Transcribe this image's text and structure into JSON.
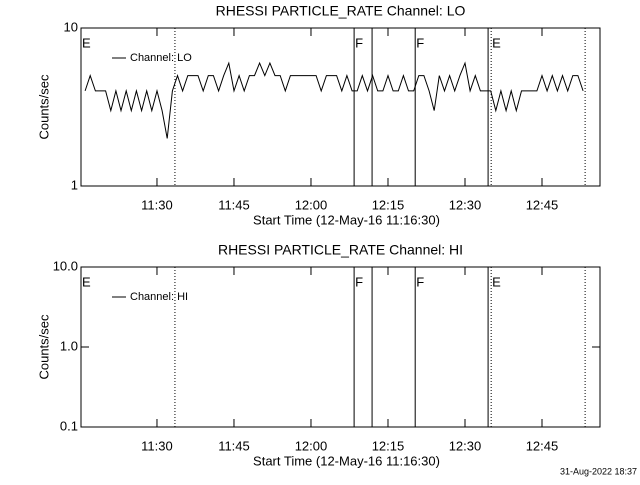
{
  "chart_data": [
    {
      "type": "line",
      "title": "RHESSI PARTICLE_RATE Channel: LO",
      "xlabel": "Start Time (12-May-16 11:16:30)",
      "ylabel": "Counts/sec",
      "log_y": true,
      "xlim": [
        675.2,
        776.3
      ],
      "ylim": [
        1,
        10
      ],
      "xticks": [
        {
          "value": 690,
          "label": "11:30"
        },
        {
          "value": 705,
          "label": "11:45"
        },
        {
          "value": 720,
          "label": "12:00"
        },
        {
          "value": 735,
          "label": "12:15"
        },
        {
          "value": 750,
          "label": "12:30"
        },
        {
          "value": 765,
          "label": "12:45"
        }
      ],
      "yticks": [
        1,
        10
      ],
      "x": [
        676,
        677,
        678,
        679,
        680,
        681,
        682,
        683,
        684,
        685,
        686,
        687,
        688,
        689,
        690,
        691,
        692,
        693,
        694,
        695,
        696,
        697,
        698,
        699,
        700,
        701,
        702,
        703,
        704,
        705,
        706,
        707,
        708,
        709,
        710,
        711,
        712,
        713,
        714,
        715,
        716,
        717,
        718,
        719,
        720,
        721,
        722,
        723,
        724,
        725,
        726,
        727,
        728,
        729,
        730,
        731,
        732,
        733,
        734,
        735,
        736,
        737,
        738,
        739,
        740,
        741,
        742,
        743,
        744,
        745,
        746,
        747,
        748,
        749,
        750,
        751,
        752,
        753,
        754,
        755,
        756,
        757,
        758,
        759,
        760,
        761,
        762,
        763,
        764,
        765,
        766,
        767,
        768,
        769,
        770,
        771,
        772,
        773
      ],
      "series": [
        {
          "name": "Channel: LO",
          "color": "#000000",
          "values": [
            4,
            5,
            4,
            4,
            4,
            3,
            4,
            3,
            4,
            3,
            4,
            3,
            4,
            3,
            4,
            3,
            2,
            4,
            5,
            4,
            5,
            5,
            5,
            4,
            5,
            5,
            4,
            5,
            6,
            4,
            5,
            4,
            5,
            5,
            6,
            5,
            6,
            5,
            5,
            4,
            5,
            5,
            5,
            5,
            5,
            5,
            4,
            5,
            5,
            5,
            4,
            5,
            4,
            4,
            5,
            4,
            5,
            4,
            4,
            5,
            4,
            4,
            5,
            4,
            4,
            5,
            5,
            4,
            3,
            5,
            4,
            5,
            4,
            5,
            6,
            4,
            5,
            4,
            4,
            4,
            3,
            4,
            3,
            4,
            3,
            4,
            4,
            4,
            4,
            5,
            4,
            5,
            4,
            5,
            4,
            5,
            5,
            4
          ]
        }
      ],
      "vlines": [
        {
          "x": 693.5,
          "style": "dotted"
        },
        {
          "x": 728.4,
          "style": "solid"
        },
        {
          "x": 731.9,
          "style": "solid"
        },
        {
          "x": 740.3,
          "style": "solid"
        },
        {
          "x": 754.5,
          "style": "solid"
        },
        {
          "x": 755.1,
          "style": "dotted"
        },
        {
          "x": 773.4,
          "style": "dotted"
        }
      ],
      "flags": [
        {
          "x": 675.2,
          "label": "E"
        },
        {
          "x": 728.4,
          "label": "F"
        },
        {
          "x": 740.3,
          "label": "F"
        },
        {
          "x": 755.1,
          "label": "E"
        }
      ]
    },
    {
      "type": "line",
      "title": "RHESSI PARTICLE_RATE Channel: HI",
      "xlabel": "Start Time (12-May-16 11:16:30)",
      "ylabel": "Counts/sec",
      "log_y": true,
      "xlim": [
        675.2,
        776.3
      ],
      "ylim": [
        0.1,
        10
      ],
      "xticks": [
        {
          "value": 690,
          "label": "11:30"
        },
        {
          "value": 705,
          "label": "11:45"
        },
        {
          "value": 720,
          "label": "12:00"
        },
        {
          "value": 735,
          "label": "12:15"
        },
        {
          "value": 750,
          "label": "12:30"
        },
        {
          "value": 765,
          "label": "12:45"
        }
      ],
      "yticks": [
        {
          "value": 0.1,
          "label": "0.1"
        },
        {
          "value": 1,
          "label": "1.0"
        },
        {
          "value": 10,
          "label": "10.0"
        }
      ],
      "x": [],
      "series": [
        {
          "name": "Channel: HI",
          "color": "#000000",
          "values": []
        }
      ],
      "vlines": [
        {
          "x": 693.5,
          "style": "dotted"
        },
        {
          "x": 728.4,
          "style": "solid"
        },
        {
          "x": 731.9,
          "style": "solid"
        },
        {
          "x": 740.3,
          "style": "solid"
        },
        {
          "x": 754.5,
          "style": "solid"
        },
        {
          "x": 755.1,
          "style": "dotted"
        },
        {
          "x": 773.4,
          "style": "dotted"
        }
      ],
      "flags": [
        {
          "x": 675.2,
          "label": "E"
        },
        {
          "x": 728.4,
          "label": "F"
        },
        {
          "x": 740.3,
          "label": "F"
        },
        {
          "x": 755.1,
          "label": "E"
        }
      ]
    }
  ],
  "footer": "31-Aug-2022 18:37"
}
